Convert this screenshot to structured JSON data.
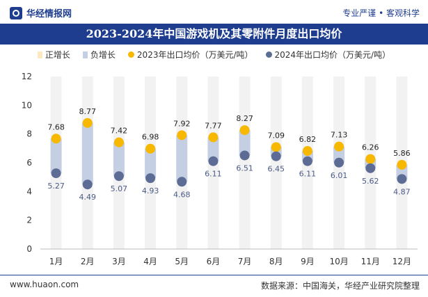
{
  "header": {
    "brand": "华经情报网",
    "tags": "专业严谨 • 客观科学"
  },
  "footer": {
    "website": "www.huaon.com",
    "source": "数据来源：中国海关，华经产业研究院整理"
  },
  "colors": {
    "positive": "#fde9c0",
    "negative": "#c5cfe3",
    "series2023": "#f6b800",
    "series2024": "#5c6c94",
    "brand": "#1e3d8f"
  },
  "chart_data": {
    "type": "dot-range",
    "title": "2023-2024年中国游戏机及其零附件月度出口均价",
    "categories": [
      "1月",
      "2月",
      "3月",
      "4月",
      "5月",
      "6月",
      "7月",
      "8月",
      "9月",
      "10月",
      "11月",
      "12月"
    ],
    "series": [
      {
        "name": "2023年出口均价（万美元/吨）",
        "values": [
          7.68,
          8.77,
          7.42,
          6.98,
          7.92,
          7.77,
          8.27,
          7.09,
          6.82,
          7.13,
          6.26,
          5.86
        ]
      },
      {
        "name": "2024年出口均价（万美元/吨）",
        "values": [
          5.27,
          4.49,
          5.07,
          4.93,
          4.68,
          6.11,
          6.51,
          6.45,
          6.11,
          6.01,
          5.62,
          4.87
        ]
      }
    ],
    "range_legend": {
      "positive": "正增长",
      "negative": "负增长"
    },
    "ylim": [
      0,
      12
    ],
    "yticks": [
      0,
      2,
      4,
      6,
      8,
      10,
      12
    ],
    "xlabel": "",
    "ylabel": ""
  }
}
